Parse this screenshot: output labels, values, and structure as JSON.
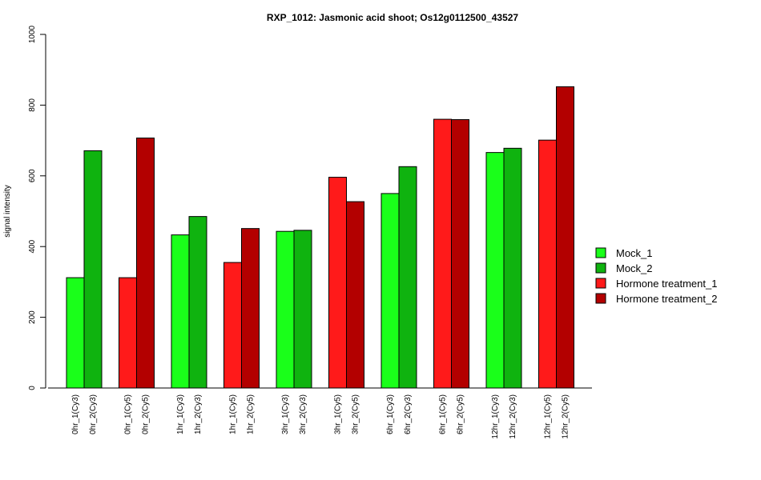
{
  "chart_data": {
    "type": "bar",
    "title": "RXP_1012: Jasmonic acid shoot; Os12g0112500_43527",
    "xlabel": "",
    "ylabel": "signal intensity",
    "ylim": [
      0,
      1000
    ],
    "yticks": [
      0,
      200,
      400,
      600,
      800,
      1000
    ],
    "grid": false,
    "legend_position": "right",
    "legend": [
      {
        "label": "Mock_1",
        "color": "#1aff1a"
      },
      {
        "label": "Mock_2",
        "color": "#0fb30f"
      },
      {
        "label": "Hormone treatment_1",
        "color": "#ff1a1a"
      },
      {
        "label": "Hormone treatment_2",
        "color": "#b30000"
      }
    ],
    "groups": [
      {
        "bars": [
          {
            "label": "0hr_1(Cy3)",
            "value": 312,
            "color": "#1aff1a"
          },
          {
            "label": "0hr_2(Cy3)",
            "value": 671,
            "color": "#0fb30f"
          }
        ]
      },
      {
        "bars": [
          {
            "label": "0hr_1(Cy5)",
            "value": 312,
            "color": "#ff1a1a"
          },
          {
            "label": "0hr_2(Cy5)",
            "value": 707,
            "color": "#b30000"
          }
        ]
      },
      {
        "bars": [
          {
            "label": "1hr_1(Cy3)",
            "value": 433,
            "color": "#1aff1a"
          },
          {
            "label": "1hr_2(Cy3)",
            "value": 485,
            "color": "#0fb30f"
          }
        ]
      },
      {
        "bars": [
          {
            "label": "1hr_1(Cy5)",
            "value": 355,
            "color": "#ff1a1a"
          },
          {
            "label": "1hr_2(Cy5)",
            "value": 451,
            "color": "#b30000"
          }
        ]
      },
      {
        "bars": [
          {
            "label": "3hr_1(Cy3)",
            "value": 443,
            "color": "#1aff1a"
          },
          {
            "label": "3hr_2(Cy3)",
            "value": 446,
            "color": "#0fb30f"
          }
        ]
      },
      {
        "bars": [
          {
            "label": "3hr_1(Cy5)",
            "value": 596,
            "color": "#ff1a1a"
          },
          {
            "label": "3hr_2(Cy5)",
            "value": 527,
            "color": "#b30000"
          }
        ]
      },
      {
        "bars": [
          {
            "label": "6hr_1(Cy3)",
            "value": 550,
            "color": "#1aff1a"
          },
          {
            "label": "6hr_2(Cy3)",
            "value": 626,
            "color": "#0fb30f"
          }
        ]
      },
      {
        "bars": [
          {
            "label": "6hr_1(Cy5)",
            "value": 760,
            "color": "#ff1a1a"
          },
          {
            "label": "6hr_2(Cy5)",
            "value": 759,
            "color": "#b30000"
          }
        ]
      },
      {
        "bars": [
          {
            "label": "12hr_1(Cy3)",
            "value": 666,
            "color": "#1aff1a"
          },
          {
            "label": "12hr_2(Cy3)",
            "value": 678,
            "color": "#0fb30f"
          }
        ]
      },
      {
        "bars": [
          {
            "label": "12hr_1(Cy5)",
            "value": 701,
            "color": "#ff1a1a"
          },
          {
            "label": "12hr_2(Cy5)",
            "value": 852,
            "color": "#b30000"
          }
        ]
      }
    ]
  }
}
